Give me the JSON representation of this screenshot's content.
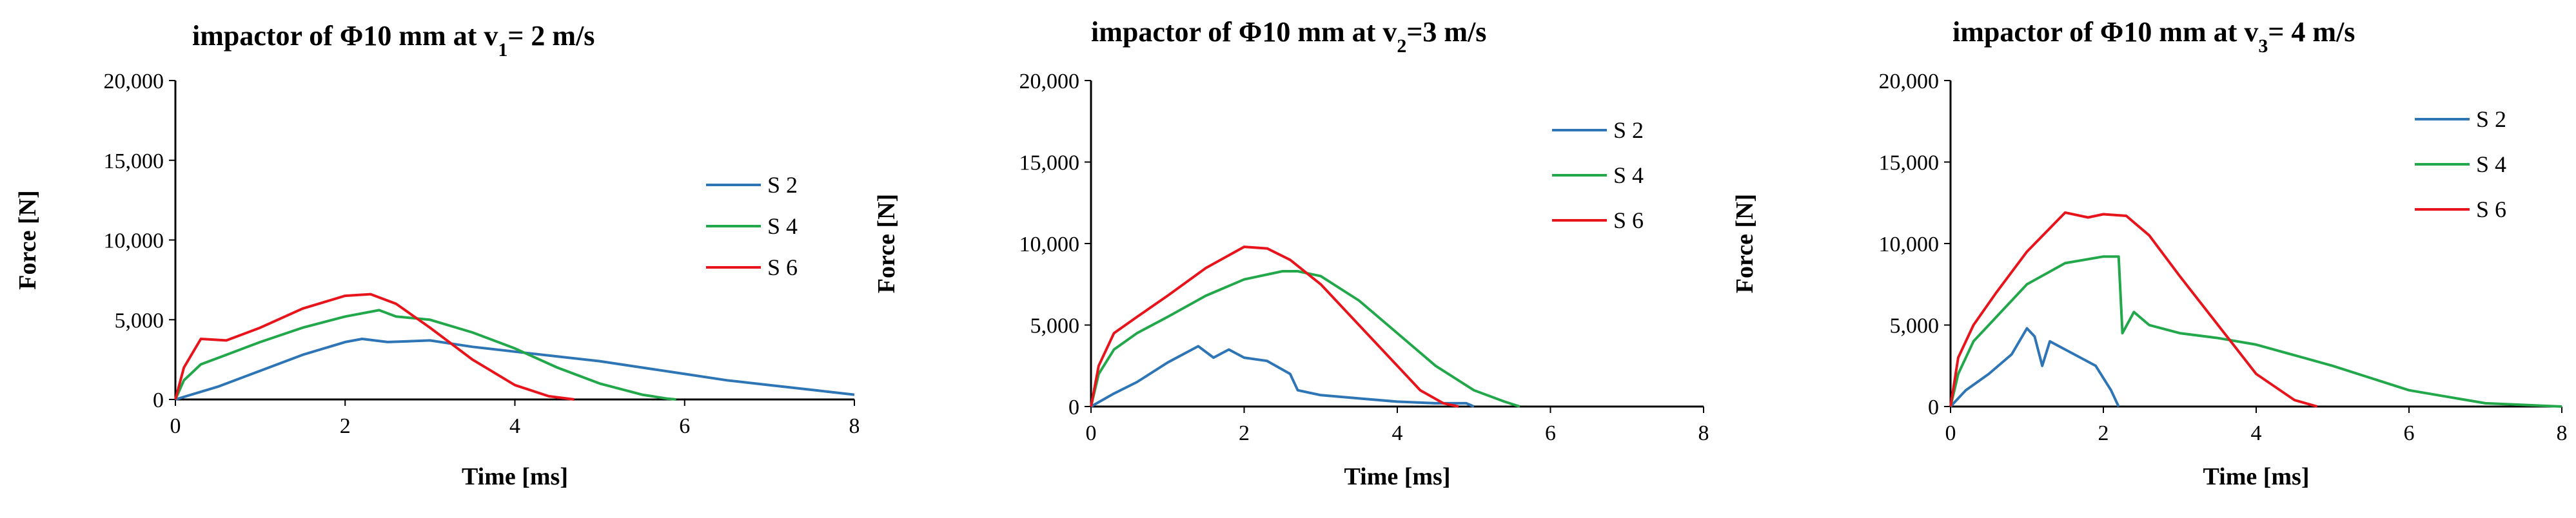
{
  "chart_data": [
    {
      "type": "line",
      "title": {
        "prefix": "impactor of Φ10 mm at v",
        "sub": "1",
        "suffix": "= 2 m/s"
      },
      "xlabel": "Time [ms]",
      "ylabel": "Force [N]",
      "xlim": [
        0,
        8
      ],
      "ylim": [
        0,
        20000
      ],
      "xticks": [
        0,
        2,
        4,
        6,
        8
      ],
      "yticks": [
        0,
        5000,
        10000,
        15000,
        20000
      ],
      "ytick_labels": [
        "0",
        "5,000",
        "10,000",
        "15,000",
        "20,000"
      ],
      "grid": false,
      "legend_position": "right",
      "series": [
        {
          "name": "S 2",
          "color": "#2E75B6",
          "x": [
            0,
            0.5,
            1.0,
            1.5,
            2.0,
            2.2,
            2.5,
            3.0,
            3.5,
            4.0,
            4.5,
            5.0,
            5.5,
            6.0,
            6.5,
            7.0,
            7.5,
            8.0
          ],
          "y": [
            0,
            800,
            1800,
            2800,
            3600,
            3800,
            3600,
            3700,
            3300,
            3000,
            2700,
            2400,
            2000,
            1600,
            1200,
            900,
            600,
            300
          ]
        },
        {
          "name": "S 4",
          "color": "#22A84A",
          "x": [
            0,
            0.1,
            0.3,
            0.6,
            1.0,
            1.5,
            2.0,
            2.4,
            2.6,
            3.0,
            3.5,
            4.0,
            4.5,
            5.0,
            5.5,
            5.8,
            5.9
          ],
          "y": [
            0,
            1200,
            2200,
            2800,
            3600,
            4500,
            5200,
            5600,
            5200,
            5000,
            4200,
            3200,
            2000,
            1000,
            300,
            50,
            0
          ]
        },
        {
          "name": "S 6",
          "color": "#E8141B",
          "x": [
            0,
            0.1,
            0.3,
            0.6,
            1.0,
            1.5,
            2.0,
            2.3,
            2.6,
            3.0,
            3.5,
            4.0,
            4.4,
            4.7
          ],
          "y": [
            0,
            2000,
            3800,
            3700,
            4500,
            5700,
            6500,
            6600,
            6000,
            4500,
            2500,
            900,
            200,
            0
          ]
        }
      ]
    },
    {
      "type": "line",
      "title": {
        "prefix": "impactor of Φ10 mm at v",
        "sub": "2",
        "suffix": "=3 m/s"
      },
      "xlabel": "Time [ms]",
      "ylabel": "Force [N]",
      "xlim": [
        0,
        8
      ],
      "ylim": [
        0,
        20000
      ],
      "xticks": [
        0,
        2,
        4,
        6,
        8
      ],
      "yticks": [
        0,
        5000,
        10000,
        15000,
        20000
      ],
      "ytick_labels": [
        "0",
        "5,000",
        "10,000",
        "15,000",
        "20,000"
      ],
      "grid": false,
      "legend_position": "top-right",
      "series": [
        {
          "name": "S 2",
          "color": "#2E75B6",
          "x": [
            0,
            0.3,
            0.6,
            1.0,
            1.4,
            1.6,
            1.8,
            2.0,
            2.3,
            2.6,
            2.7,
            3.0,
            3.5,
            4.0,
            4.5,
            4.9,
            5.0
          ],
          "y": [
            0,
            800,
            1500,
            2700,
            3700,
            3000,
            3500,
            3000,
            2800,
            2000,
            1000,
            700,
            500,
            300,
            200,
            200,
            0
          ]
        },
        {
          "name": "S 4",
          "color": "#22A84A",
          "x": [
            0,
            0.1,
            0.3,
            0.6,
            1.0,
            1.5,
            2.0,
            2.5,
            2.7,
            3.0,
            3.5,
            4.0,
            4.5,
            5.0,
            5.4,
            5.6
          ],
          "y": [
            0,
            2000,
            3500,
            4500,
            5500,
            6800,
            7800,
            8300,
            8300,
            8000,
            6500,
            4500,
            2500,
            1000,
            300,
            0
          ]
        },
        {
          "name": "S 6",
          "color": "#E8141B",
          "x": [
            0,
            0.1,
            0.3,
            0.6,
            1.0,
            1.5,
            2.0,
            2.3,
            2.6,
            3.0,
            3.5,
            4.0,
            4.3,
            4.6,
            4.8
          ],
          "y": [
            0,
            2500,
            4500,
            5500,
            6800,
            8500,
            9800,
            9700,
            9000,
            7500,
            5000,
            2500,
            1000,
            200,
            0
          ]
        }
      ]
    },
    {
      "type": "line",
      "title": {
        "prefix": "impactor of Φ10 mm at v",
        "sub": "3",
        "suffix": "= 4 m/s"
      },
      "xlabel": "Time [ms]",
      "ylabel": "Force [N]",
      "xlim": [
        0,
        8
      ],
      "ylim": [
        0,
        20000
      ],
      "xticks": [
        0,
        2,
        4,
        6,
        8
      ],
      "yticks": [
        0,
        5000,
        10000,
        15000,
        20000
      ],
      "ytick_labels": [
        "0",
        "5,000",
        "10,000",
        "15,000",
        "20,000"
      ],
      "grid": false,
      "legend_position": "top-right",
      "series": [
        {
          "name": "S 2",
          "color": "#2E75B6",
          "x": [
            0,
            0.2,
            0.5,
            0.8,
            1.0,
            1.1,
            1.2,
            1.3,
            1.5,
            1.7,
            1.9,
            2.1,
            2.2
          ],
          "y": [
            0,
            1000,
            2000,
            3200,
            4800,
            4300,
            2500,
            4000,
            3500,
            3000,
            2500,
            1000,
            0
          ]
        },
        {
          "name": "S 4",
          "color": "#22A84A",
          "x": [
            0,
            0.1,
            0.3,
            0.6,
            1.0,
            1.5,
            2.0,
            2.2,
            2.25,
            2.4,
            2.6,
            3.0,
            3.5,
            4.0,
            5.0,
            6.0,
            7.0,
            8.0
          ],
          "y": [
            0,
            2000,
            4000,
            5500,
            7500,
            8800,
            9200,
            9200,
            4500,
            5800,
            5000,
            4500,
            4200,
            3800,
            2500,
            1000,
            200,
            0
          ]
        },
        {
          "name": "S 6",
          "color": "#E8141B",
          "x": [
            0,
            0.1,
            0.3,
            0.6,
            1.0,
            1.5,
            1.8,
            2.0,
            2.3,
            2.6,
            3.0,
            3.5,
            4.0,
            4.5,
            4.8
          ],
          "y": [
            0,
            3000,
            5000,
            7000,
            9500,
            11900,
            11600,
            11800,
            11700,
            10500,
            8000,
            5000,
            2000,
            400,
            0
          ]
        }
      ]
    }
  ]
}
